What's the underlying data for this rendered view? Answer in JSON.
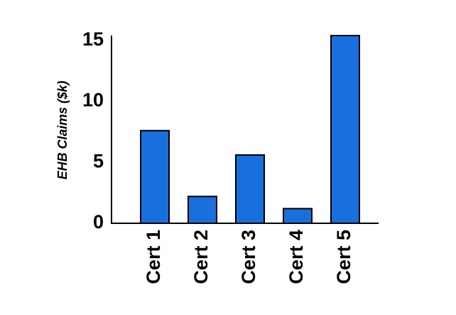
{
  "chart_data": {
    "type": "bar",
    "y_label": "EHB Claims ($k)",
    "categories": [
      "Cert 1",
      "Cert 2",
      "Cert 3",
      "Cert 4",
      "Cert 5"
    ],
    "values": [
      7.6,
      2.2,
      5.6,
      1.2,
      15.4
    ],
    "color": "#1a6fdf",
    "ylim": [
      0,
      15.4
    ],
    "yticks": [
      0,
      5,
      10,
      15
    ],
    "grid": false
  }
}
